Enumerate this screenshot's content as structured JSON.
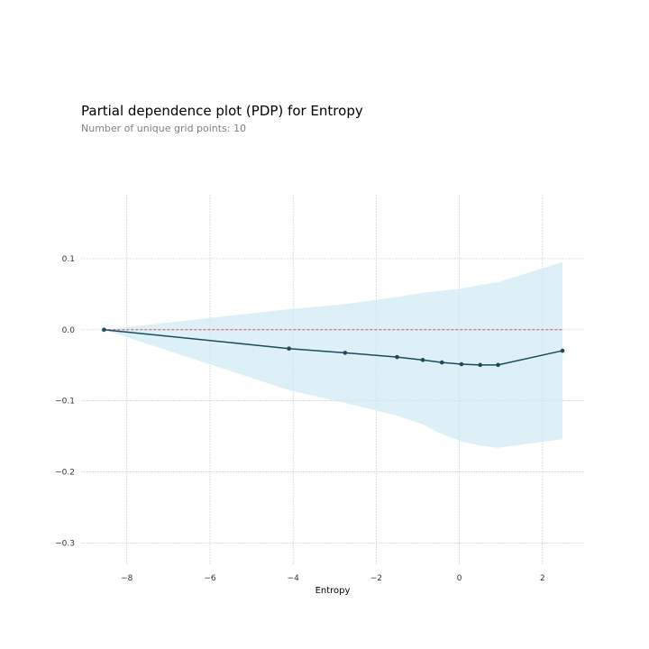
{
  "chart_data": {
    "type": "line",
    "title": "Partial dependence plot (PDP) for Entropy",
    "subtitle": "Number of unique grid points: 10",
    "xlabel": "Entropy",
    "ylabel": "",
    "xlim": [
      -9.1,
      3.0
    ],
    "ylim": [
      -0.33,
      0.19
    ],
    "xticks": [
      -8,
      -6,
      -4,
      -2,
      0,
      2
    ],
    "xtick_labels": [
      "−8",
      "−6",
      "−4",
      "−2",
      "0",
      "2"
    ],
    "yticks": [
      0.1,
      0.0,
      -0.1,
      -0.2,
      -0.3
    ],
    "ytick_labels": [
      "0.1",
      "0.0",
      "−0.1",
      "−0.2",
      "−0.3"
    ],
    "grid": true,
    "legend": "none",
    "series": [
      {
        "name": "PDP",
        "x": [
          -8.55,
          -4.1,
          -2.75,
          -1.5,
          -0.88,
          -0.42,
          0.05,
          0.5,
          0.93,
          2.48
        ],
        "values": [
          0.0,
          -0.0265,
          -0.0325,
          -0.0385,
          -0.0425,
          -0.046,
          -0.0485,
          -0.0495,
          -0.0495,
          -0.0295
        ],
        "upper": [
          0.0,
          0.029,
          0.036,
          0.046,
          0.052,
          0.055,
          0.058,
          0.063,
          0.067,
          0.095
        ],
        "lower": [
          0.0,
          -0.085,
          -0.103,
          -0.121,
          -0.133,
          -0.147,
          -0.157,
          -0.163,
          -0.166,
          -0.154
        ],
        "color": "#1a4b5c",
        "band_color": "#cfeaf3"
      }
    ],
    "reference_line": {
      "y": 0.0,
      "color": "#d9534f"
    }
  }
}
